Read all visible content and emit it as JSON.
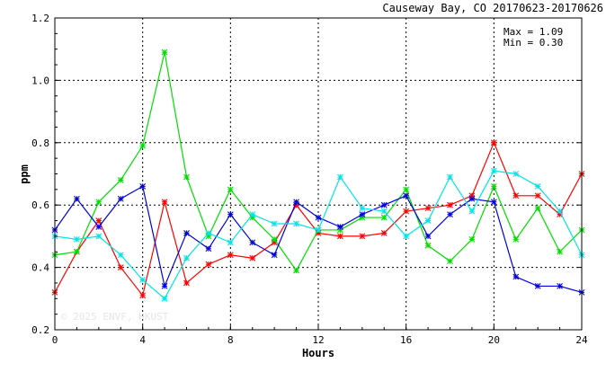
{
  "chart_data": {
    "type": "line",
    "title": "Causeway Bay, CO 20170623-20170626",
    "xlabel": "Hours",
    "ylabel": "ppm",
    "xlim": [
      0,
      24
    ],
    "ylim": [
      0.2,
      1.2
    ],
    "xticks": [
      "0",
      "4",
      "8",
      "12",
      "16",
      "20",
      "24"
    ],
    "yticks": [
      "0.2",
      "0.4",
      "0.6",
      "0.8",
      "1.0",
      "1.2"
    ],
    "grid": true,
    "stats": {
      "max_label": "Max = 1.09",
      "min_label": "Min = 0.30"
    },
    "watermark": "© 2025 ENVF, HKUST",
    "x": [
      0,
      1,
      2,
      3,
      4,
      5,
      6,
      7,
      8,
      9,
      10,
      11,
      12,
      13,
      14,
      15,
      16,
      17,
      18,
      19,
      20,
      21,
      22,
      23,
      24
    ],
    "series": [
      {
        "color": "#ff0000",
        "values": [
          0.32,
          0.45,
          0.55,
          0.4,
          0.31,
          0.61,
          0.35,
          0.41,
          0.44,
          0.43,
          0.48,
          0.6,
          0.51,
          0.5,
          0.5,
          0.51,
          0.58,
          0.59,
          0.6,
          0.63,
          0.8,
          0.63,
          0.63,
          0.57,
          0.7
        ]
      },
      {
        "color": "#00dd00",
        "values": [
          0.44,
          0.45,
          0.61,
          0.68,
          0.79,
          1.09,
          0.69,
          0.5,
          0.65,
          0.56,
          0.49,
          0.39,
          0.52,
          0.52,
          0.56,
          0.56,
          0.65,
          0.47,
          0.42,
          0.49,
          0.66,
          0.49,
          0.59,
          0.45,
          0.52
        ]
      },
      {
        "color": "#0000dd",
        "values": [
          0.52,
          0.62,
          0.53,
          0.62,
          0.66,
          0.34,
          0.51,
          0.46,
          0.57,
          0.48,
          0.44,
          0.61,
          0.56,
          0.53,
          0.57,
          0.6,
          0.63,
          0.5,
          0.57,
          0.62,
          0.61,
          0.37,
          0.34,
          0.34,
          0.32
        ]
      },
      {
        "color": "#00e5e5",
        "values": [
          0.5,
          0.49,
          0.5,
          0.44,
          0.36,
          0.3,
          0.43,
          0.51,
          0.48,
          0.57,
          0.54,
          0.54,
          0.52,
          0.69,
          0.59,
          0.58,
          0.5,
          0.55,
          0.69,
          0.58,
          0.71,
          0.7,
          0.66,
          0.58,
          0.44
        ]
      }
    ]
  }
}
